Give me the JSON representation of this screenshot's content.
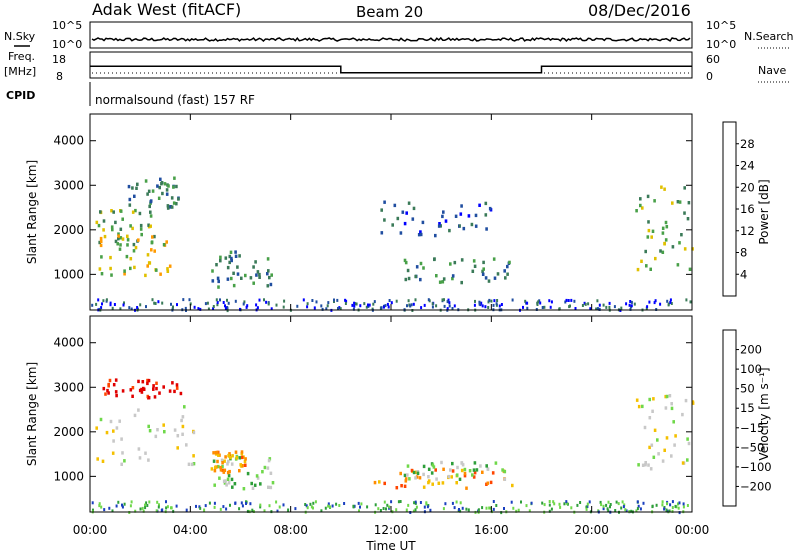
{
  "header": {
    "station": "Adak West (fitACF)",
    "beam": "Beam 20",
    "date": "08/Dec/2016"
  },
  "top_panels": {
    "nsky_label": "N.Sky",
    "nsky_ticks": [
      "10^5",
      "10^0"
    ],
    "nsearch_label": "N.Search",
    "nsearch_ticks": [
      "10^5",
      "10^0"
    ],
    "freq_label": "Freq.",
    "freq_unit": "[MHz]",
    "freq_ticks": [
      "18",
      "8"
    ],
    "nave_label": "Nave",
    "nave_ticks": [
      "60",
      "0"
    ],
    "cpid_label": "CPID",
    "cpid_value": "normalsound (fast) 157 RF"
  },
  "chart_data": [
    {
      "type": "line",
      "name": "frequency",
      "x_hours": [
        0,
        10,
        10,
        18,
        18,
        24
      ],
      "y_mhz": [
        12.5,
        12.5,
        10,
        10,
        12.5,
        12.5
      ],
      "ylim": [
        8,
        18
      ]
    },
    {
      "type": "heatmap",
      "name": "power",
      "ylabel": "Slant Range [km]",
      "ylim": [
        200,
        4600
      ],
      "yticks": [
        "4000",
        "3000",
        "2000",
        "1000"
      ],
      "colorbar_label": "Power [dB]",
      "colorbar_ticks": [
        "28",
        "24",
        "20",
        "16",
        "12",
        "8",
        "4"
      ],
      "colors": [
        "#0000ff",
        "#204ea0",
        "#3a7a58",
        "#48a048",
        "#e0c000",
        "#ff9a00",
        "#ff4000",
        "#ff0000"
      ],
      "regions": [
        {
          "x0": 0.2,
          "x1": 2.6,
          "r0": 1700,
          "r1": 2500,
          "level": 3
        },
        {
          "x0": 0.3,
          "x1": 3.2,
          "r0": 1000,
          "r1": 1900,
          "level": 4
        },
        {
          "x0": 1.5,
          "x1": 3.5,
          "r0": 2500,
          "r1": 3200,
          "level": 2
        },
        {
          "x0": 4.8,
          "x1": 7.3,
          "r0": 750,
          "r1": 1550,
          "level": 2
        },
        {
          "x0": 12.5,
          "x1": 16.8,
          "r0": 850,
          "r1": 1400,
          "level": 2
        },
        {
          "x0": 11.5,
          "x1": 16.0,
          "r0": 1900,
          "r1": 2700,
          "level": 1
        },
        {
          "x0": 21.7,
          "x1": 24.0,
          "r0": 1100,
          "r1": 3000,
          "level": 3
        }
      ]
    },
    {
      "type": "heatmap",
      "name": "velocity",
      "xlabel": "Time UT",
      "ylabel": "Slant Range [km]",
      "ylim": [
        200,
        4600
      ],
      "yticks": [
        "4000",
        "3000",
        "2000",
        "1000"
      ],
      "xticks": [
        "00:00",
        "04:00",
        "08:00",
        "12:00",
        "16:00",
        "20:00",
        "00:00"
      ],
      "colorbar_label": "Velocity [m s⁻¹]",
      "colorbar_ticks": [
        "200",
        "100",
        "50",
        "15",
        "−15",
        "−50",
        "−100",
        "−200"
      ],
      "colors": [
        "#1a3fbf",
        "#2e9e3a",
        "#6fd84a",
        "#c8c8c8",
        "#f4c000",
        "#ff8c00",
        "#ff4500",
        "#e00000"
      ],
      "regions": [
        {
          "x0": 0.2,
          "x1": 4.2,
          "r0": 1300,
          "r1": 2600,
          "level": 3
        },
        {
          "x0": 0.4,
          "x1": 3.6,
          "r0": 2800,
          "r1": 3200,
          "level": 7
        },
        {
          "x0": 4.8,
          "x1": 7.3,
          "r0": 750,
          "r1": 1500,
          "level": 2
        },
        {
          "x0": 4.8,
          "x1": 6.2,
          "r0": 1100,
          "r1": 1600,
          "level": 5
        },
        {
          "x0": 11.0,
          "x1": 16.8,
          "r0": 750,
          "r1": 1200,
          "level": 5
        },
        {
          "x0": 12.5,
          "x1": 16.5,
          "r0": 950,
          "r1": 1350,
          "level": 2
        },
        {
          "x0": 21.7,
          "x1": 24.0,
          "r0": 1200,
          "r1": 2900,
          "level": 3
        }
      ]
    }
  ]
}
